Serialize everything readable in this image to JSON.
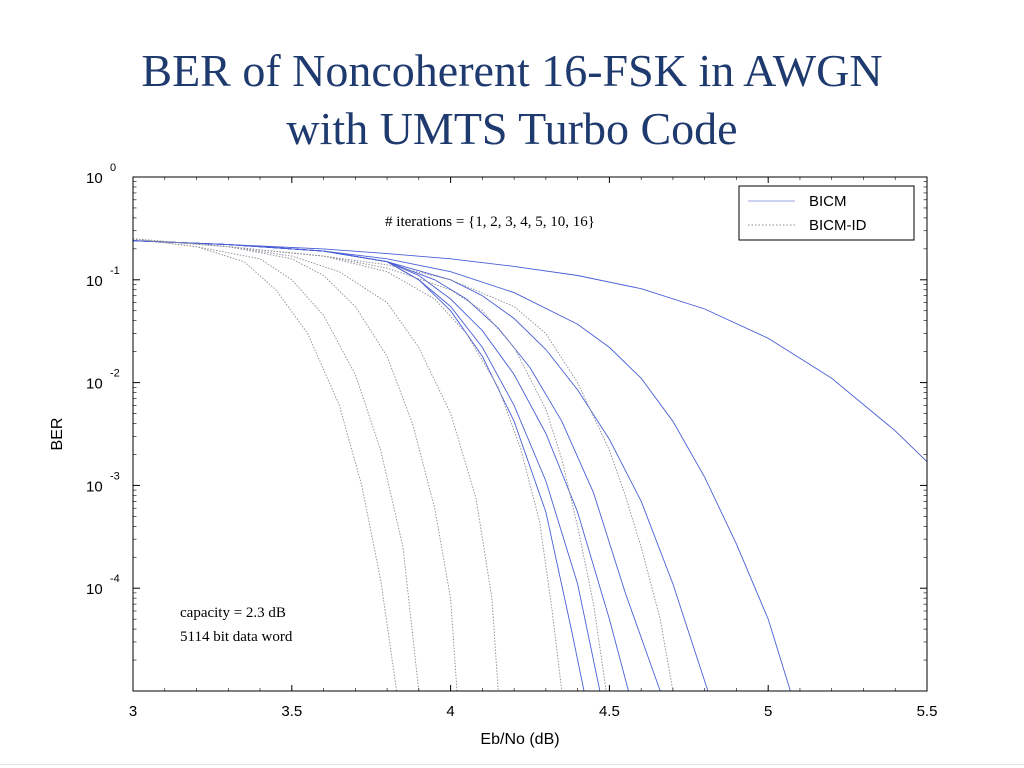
{
  "slide": {
    "title_line1": "BER of Noncoherent 16-FSK in AWGN",
    "title_line2": "with UMTS Turbo Code"
  },
  "chart_data": {
    "type": "line",
    "title": "BER of Noncoherent 16-FSK in AWGN with UMTS Turbo Code",
    "xlabel": "Eb/No (dB)",
    "ylabel": "BER",
    "xlim": [
      3,
      5.5
    ],
    "ylim": [
      1e-05,
      1
    ],
    "yscale": "log",
    "grid": false,
    "x_ticks": [
      "3",
      "3.5",
      "4",
      "4.5",
      "5",
      "5.5"
    ],
    "y_ticks": [
      {
        "value": 1,
        "base": "10",
        "exp": "0"
      },
      {
        "value": 0.1,
        "base": "10",
        "exp": "-1"
      },
      {
        "value": 0.01,
        "base": "10",
        "exp": "-2"
      },
      {
        "value": 0.001,
        "base": "10",
        "exp": "-3"
      },
      {
        "value": 0.0001,
        "base": "10",
        "exp": "-4"
      }
    ],
    "legend": {
      "position": "top-right",
      "entries": [
        {
          "label": "BICM",
          "color": "#9aa6df",
          "style": "solid"
        },
        {
          "label": "BICM-ID",
          "color": "#8c8c96",
          "style": "dotted"
        }
      ]
    },
    "annotations": {
      "iterations": "# iterations = {1, 2, 3, 4, 5, 10, 16}",
      "capacity": "capacity =  2.3 dB",
      "data_word": "5114 bit data word"
    },
    "series": [
      {
        "group": "BICM",
        "color": "#4a5fd6",
        "points": [
          [
            3,
            0.24
          ],
          [
            3.3,
            0.22
          ],
          [
            3.6,
            0.2
          ],
          [
            3.8,
            0.18
          ],
          [
            4,
            0.16
          ],
          [
            4.2,
            0.135
          ],
          [
            4.4,
            0.11
          ],
          [
            4.6,
            0.082
          ],
          [
            4.8,
            0.052
          ],
          [
            5,
            0.027
          ],
          [
            5.2,
            0.011
          ],
          [
            5.4,
            0.0034
          ],
          [
            5.5,
            0.0017
          ]
        ]
      },
      {
        "group": "BICM",
        "color": "#4a5fd6",
        "points": [
          [
            3,
            0.24
          ],
          [
            3.3,
            0.22
          ],
          [
            3.6,
            0.19
          ],
          [
            3.8,
            0.16
          ],
          [
            4,
            0.12
          ],
          [
            4.2,
            0.075
          ],
          [
            4.4,
            0.037
          ],
          [
            4.5,
            0.022
          ],
          [
            4.6,
            0.011
          ],
          [
            4.7,
            0.0042
          ],
          [
            4.8,
            0.0012
          ],
          [
            4.9,
            0.00027
          ],
          [
            5,
            5e-05
          ],
          [
            5.07,
            1e-05
          ]
        ]
      },
      {
        "group": "BICM",
        "color": "#4a5fd6",
        "points": [
          [
            3,
            0.24
          ],
          [
            3.3,
            0.22
          ],
          [
            3.6,
            0.19
          ],
          [
            3.8,
            0.15
          ],
          [
            4,
            0.1
          ],
          [
            4.1,
            0.07
          ],
          [
            4.2,
            0.042
          ],
          [
            4.3,
            0.021
          ],
          [
            4.4,
            0.0085
          ],
          [
            4.5,
            0.0028
          ],
          [
            4.6,
            0.0007
          ],
          [
            4.7,
            0.00011
          ],
          [
            4.81,
            1e-05
          ]
        ]
      },
      {
        "group": "BICM",
        "color": "#4a5fd6",
        "points": [
          [
            3,
            0.24
          ],
          [
            3.3,
            0.22
          ],
          [
            3.6,
            0.19
          ],
          [
            3.8,
            0.15
          ],
          [
            3.95,
            0.1
          ],
          [
            4.05,
            0.065
          ],
          [
            4.15,
            0.034
          ],
          [
            4.25,
            0.014
          ],
          [
            4.35,
            0.0042
          ],
          [
            4.45,
            0.00085
          ],
          [
            4.55,
            9e-05
          ],
          [
            4.66,
            1e-05
          ]
        ]
      },
      {
        "group": "BICM",
        "color": "#4a5fd6",
        "points": [
          [
            3,
            0.24
          ],
          [
            3.3,
            0.22
          ],
          [
            3.6,
            0.19
          ],
          [
            3.8,
            0.15
          ],
          [
            3.9,
            0.11
          ],
          [
            4,
            0.065
          ],
          [
            4.1,
            0.032
          ],
          [
            4.2,
            0.012
          ],
          [
            4.3,
            0.0032
          ],
          [
            4.4,
            0.00055
          ],
          [
            4.5,
            5e-05
          ],
          [
            4.56,
            1e-05
          ]
        ]
      },
      {
        "group": "BICM",
        "color": "#4a5fd6",
        "points": [
          [
            3,
            0.24
          ],
          [
            3.3,
            0.22
          ],
          [
            3.6,
            0.19
          ],
          [
            3.8,
            0.15
          ],
          [
            3.9,
            0.1
          ],
          [
            4,
            0.055
          ],
          [
            4.1,
            0.022
          ],
          [
            4.2,
            0.006
          ],
          [
            4.3,
            0.0011
          ],
          [
            4.4,
            0.00011
          ],
          [
            4.47,
            1e-05
          ]
        ]
      },
      {
        "group": "BICM",
        "color": "#4a5fd6",
        "points": [
          [
            3,
            0.24
          ],
          [
            3.3,
            0.22
          ],
          [
            3.6,
            0.19
          ],
          [
            3.8,
            0.15
          ],
          [
            3.9,
            0.1
          ],
          [
            4,
            0.05
          ],
          [
            4.1,
            0.018
          ],
          [
            4.2,
            0.0042
          ],
          [
            4.3,
            0.00055
          ],
          [
            4.38,
            4e-05
          ],
          [
            4.42,
            1e-05
          ]
        ]
      },
      {
        "group": "BICM-ID",
        "color": "#8c8c96",
        "points": [
          [
            3,
            0.25
          ],
          [
            3.2,
            0.21
          ],
          [
            3.35,
            0.15
          ],
          [
            3.45,
            0.08
          ],
          [
            3.55,
            0.03
          ],
          [
            3.65,
            0.006
          ],
          [
            3.72,
            0.001
          ],
          [
            3.78,
            0.00012
          ],
          [
            3.83,
            1e-05
          ]
        ]
      },
      {
        "group": "BICM-ID",
        "color": "#8c8c96",
        "points": [
          [
            3,
            0.25
          ],
          [
            3.2,
            0.21
          ],
          [
            3.4,
            0.16
          ],
          [
            3.5,
            0.1
          ],
          [
            3.6,
            0.045
          ],
          [
            3.7,
            0.012
          ],
          [
            3.78,
            0.0022
          ],
          [
            3.85,
            0.00025
          ],
          [
            3.9,
            1e-05
          ]
        ]
      },
      {
        "group": "BICM-ID",
        "color": "#8c8c96",
        "points": [
          [
            3,
            0.25
          ],
          [
            3.3,
            0.21
          ],
          [
            3.5,
            0.16
          ],
          [
            3.6,
            0.11
          ],
          [
            3.7,
            0.055
          ],
          [
            3.8,
            0.018
          ],
          [
            3.88,
            0.004
          ],
          [
            3.95,
            0.0006
          ],
          [
            4,
            8e-05
          ],
          [
            4.02,
            1e-05
          ]
        ]
      },
      {
        "group": "BICM-ID",
        "color": "#8c8c96",
        "points": [
          [
            3,
            0.25
          ],
          [
            3.3,
            0.21
          ],
          [
            3.5,
            0.17
          ],
          [
            3.65,
            0.12
          ],
          [
            3.8,
            0.06
          ],
          [
            3.9,
            0.022
          ],
          [
            4,
            0.005
          ],
          [
            4.08,
            0.00075
          ],
          [
            4.13,
            8e-05
          ],
          [
            4.15,
            1e-05
          ]
        ]
      },
      {
        "group": "BICM-ID",
        "color": "#8c8c96",
        "points": [
          [
            3,
            0.25
          ],
          [
            3.3,
            0.21
          ],
          [
            3.6,
            0.17
          ],
          [
            3.8,
            0.12
          ],
          [
            3.95,
            0.065
          ],
          [
            4.05,
            0.03
          ],
          [
            4.15,
            0.009
          ],
          [
            4.22,
            0.0023
          ],
          [
            4.28,
            0.00045
          ],
          [
            4.32,
            6e-05
          ],
          [
            4.35,
            1e-05
          ]
        ]
      },
      {
        "group": "BICM-ID",
        "color": "#8c8c96",
        "points": [
          [
            3,
            0.25
          ],
          [
            3.3,
            0.21
          ],
          [
            3.6,
            0.17
          ],
          [
            3.8,
            0.13
          ],
          [
            4,
            0.08
          ],
          [
            4.1,
            0.05
          ],
          [
            4.2,
            0.022
          ],
          [
            4.3,
            0.0055
          ],
          [
            4.35,
            0.0018
          ],
          [
            4.4,
            0.0004
          ],
          [
            4.45,
            7e-05
          ],
          [
            4.49,
            1e-05
          ]
        ]
      },
      {
        "group": "BICM-ID",
        "color": "#8c8c96",
        "points": [
          [
            3,
            0.25
          ],
          [
            3.3,
            0.21
          ],
          [
            3.6,
            0.17
          ],
          [
            3.8,
            0.14
          ],
          [
            4,
            0.1
          ],
          [
            4.2,
            0.055
          ],
          [
            4.3,
            0.03
          ],
          [
            4.4,
            0.01
          ],
          [
            4.5,
            0.0022
          ],
          [
            4.55,
            0.0008
          ],
          [
            4.6,
            0.00025
          ],
          [
            4.66,
            5e-05
          ],
          [
            4.7,
            1e-05
          ]
        ]
      }
    ]
  }
}
